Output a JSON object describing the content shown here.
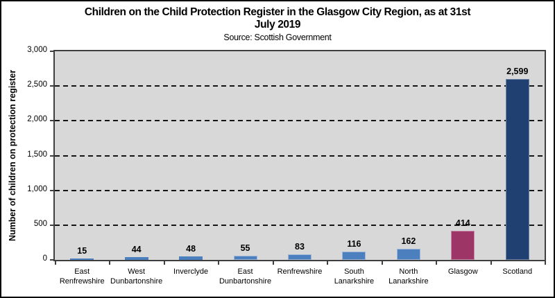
{
  "chart": {
    "title": "Children on the Child Protection Register in the Glasgow City Region, as at 31st\nJuly 2019",
    "subtitle": "Source: Scottish Government",
    "ylabel": "Number of children on protection register"
  },
  "chart_data": {
    "type": "bar",
    "title": "Children on the Child Protection Register in the Glasgow City Region, as at 31st July 2019",
    "subtitle": "Source: Scottish Government",
    "xlabel": "",
    "ylabel": "Number of children on protection register",
    "ylim": [
      0,
      3000
    ],
    "grid": "horizontal-dashed",
    "legend_position": "none",
    "yticks": [
      {
        "value": 0,
        "label": "0"
      },
      {
        "value": 500,
        "label": "500"
      },
      {
        "value": 1000,
        "label": "1,000"
      },
      {
        "value": 1500,
        "label": "1,500"
      },
      {
        "value": 2000,
        "label": "2,000"
      },
      {
        "value": 2500,
        "label": "2,500"
      },
      {
        "value": 3000,
        "label": "3,000"
      }
    ],
    "points": [
      {
        "category": "East\nRenfrewshire",
        "value": 15,
        "display": "15",
        "color": "#4C7FBD",
        "edge": "#9DB6D9"
      },
      {
        "category": "West\nDunbartonshire",
        "value": 44,
        "display": "44",
        "color": "#4C7FBD",
        "edge": "#9DB6D9"
      },
      {
        "category": "Inverclyde",
        "value": 48,
        "display": "48",
        "color": "#4C7FBD",
        "edge": "#9DB6D9"
      },
      {
        "category": "East\nDunbartonshire",
        "value": 55,
        "display": "55",
        "color": "#4C7FBD",
        "edge": "#9DB6D9"
      },
      {
        "category": "Renfrewshire",
        "value": 83,
        "display": "83",
        "color": "#4C7FBD",
        "edge": "#9DB6D9"
      },
      {
        "category": "South\nLanarkshire",
        "value": 116,
        "display": "116",
        "color": "#4C7FBD",
        "edge": "#9DB6D9"
      },
      {
        "category": "North\nLanarkshire",
        "value": 162,
        "display": "162",
        "color": "#4C7FBD",
        "edge": "#9DB6D9"
      },
      {
        "category": "Glasgow",
        "value": 414,
        "display": "414",
        "color": "#9E3567",
        "edge": "#C488A8"
      },
      {
        "category": "Scotland",
        "value": 2599,
        "display": "2,599",
        "color": "#1F4070",
        "edge": "#6D82A7"
      }
    ],
    "colors": {
      "bar_default": "#4C7FBD",
      "bar_glasgow": "#9E3567",
      "bar_scotland": "#1F4070",
      "plot_background": "#D8D8D8",
      "gridline": "#141414"
    }
  }
}
